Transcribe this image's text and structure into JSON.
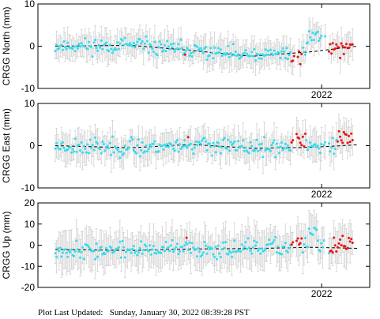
{
  "footer": {
    "label": "Plot Last Updated:",
    "timestamp": "Sunday, January 30, 2022 08:39:28 PST"
  },
  "colors": {
    "points": "#33ddee",
    "recent_points": "#ee1111",
    "error_bars": "#d0d0d0",
    "trend": "#000000"
  },
  "chart_data": [
    {
      "type": "scatter",
      "ylabel": "CRGG North (mm)",
      "ylim": [
        -10,
        10
      ],
      "yticks": [
        "10",
        "0",
        "-10"
      ],
      "xtick_label": "2022",
      "xtick_at": 0.855,
      "trend": [
        {
          "x": 0.0,
          "y": 0.0
        },
        {
          "x": 0.25,
          "y": 0.2
        },
        {
          "x": 0.45,
          "y": -1.0
        },
        {
          "x": 0.65,
          "y": -2.4
        },
        {
          "x": 0.85,
          "y": -1.3
        },
        {
          "x": 1.0,
          "y": 0.0
        }
      ],
      "bar_halfwidth": 2.8,
      "noise": 1.6,
      "seed": 11,
      "recent_clusters": [
        {
          "x0": 0.78,
          "x1": 0.82,
          "y": -2.8
        },
        {
          "x0": 0.905,
          "x1": 0.985,
          "y": -0.4
        }
      ],
      "red_singletons": [
        {
          "x": 0.43,
          "y": -2.0
        }
      ],
      "high_cluster": {
        "x0": 0.83,
        "x1": 0.9,
        "y": 2.2
      }
    },
    {
      "type": "scatter",
      "ylabel": "CRGG East (mm)",
      "ylim": [
        -10,
        10
      ],
      "yticks": [
        "10",
        "0",
        "-10"
      ],
      "xtick_label": "2022",
      "xtick_at": 0.855,
      "trend": [
        {
          "x": 0.0,
          "y": 0.0
        },
        {
          "x": 0.25,
          "y": -0.5
        },
        {
          "x": 0.45,
          "y": 0.3
        },
        {
          "x": 0.65,
          "y": -0.6
        },
        {
          "x": 0.85,
          "y": -0.4
        },
        {
          "x": 1.0,
          "y": 0.2
        }
      ],
      "bar_halfwidth": 3.0,
      "noise": 1.8,
      "seed": 23,
      "recent_clusters": [
        {
          "x0": 0.78,
          "x1": 0.83,
          "y": 1.5
        },
        {
          "x0": 0.935,
          "x1": 0.985,
          "y": 1.8
        }
      ],
      "red_singletons": [
        {
          "x": 0.44,
          "y": 2.0
        }
      ],
      "high_cluster": null
    },
    {
      "type": "scatter",
      "ylabel": "CRGG Up (mm)",
      "ylim": [
        -20,
        20
      ],
      "yticks": [
        "20",
        "10",
        "0",
        "-10",
        "-20"
      ],
      "xtick_label": "2022",
      "xtick_at": 0.855,
      "trend": [
        {
          "x": 0.0,
          "y": -2.0
        },
        {
          "x": 0.25,
          "y": -2.5
        },
        {
          "x": 0.45,
          "y": -1.8
        },
        {
          "x": 0.65,
          "y": -1.6
        },
        {
          "x": 0.85,
          "y": -1.0
        },
        {
          "x": 1.0,
          "y": -1.5
        }
      ],
      "bar_halfwidth": 7.5,
      "noise": 3.5,
      "seed": 37,
      "recent_clusters": [
        {
          "x0": 0.78,
          "x1": 0.82,
          "y": 2.0
        },
        {
          "x0": 0.91,
          "x1": 0.985,
          "y": 0.0
        }
      ],
      "red_singletons": [
        {
          "x": 0.435,
          "y": 3.5
        }
      ],
      "high_cluster": {
        "x0": 0.84,
        "x1": 0.87,
        "y": 6.0
      }
    }
  ]
}
